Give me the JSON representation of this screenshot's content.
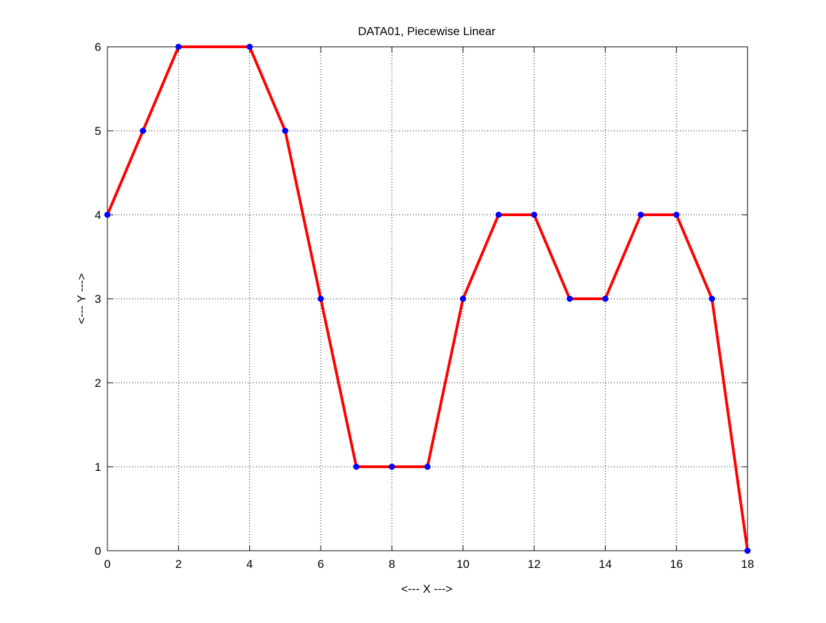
{
  "chart_data": {
    "type": "line",
    "title": "DATA01, Piecewise Linear",
    "xlabel": "<--- X --->",
    "ylabel": "<--- Y --->",
    "xlim": [
      0,
      18
    ],
    "ylim": [
      0,
      6
    ],
    "xticks": [
      "0",
      "2",
      "4",
      "6",
      "8",
      "10",
      "12",
      "14",
      "16",
      "18"
    ],
    "yticks": [
      "0",
      "1",
      "2",
      "3",
      "4",
      "5",
      "6"
    ],
    "grid": true,
    "grid_style": "dotted",
    "line_color": "#ff0000",
    "marker_color": "#0000ff",
    "x": [
      0,
      1,
      2,
      4,
      5,
      6,
      7,
      8,
      9,
      10,
      11,
      12,
      13,
      14,
      15,
      16,
      17,
      18
    ],
    "y": [
      4,
      5,
      6,
      6,
      5,
      3,
      1,
      1,
      1,
      3,
      4,
      4,
      3,
      3,
      4,
      4,
      3,
      0
    ]
  }
}
